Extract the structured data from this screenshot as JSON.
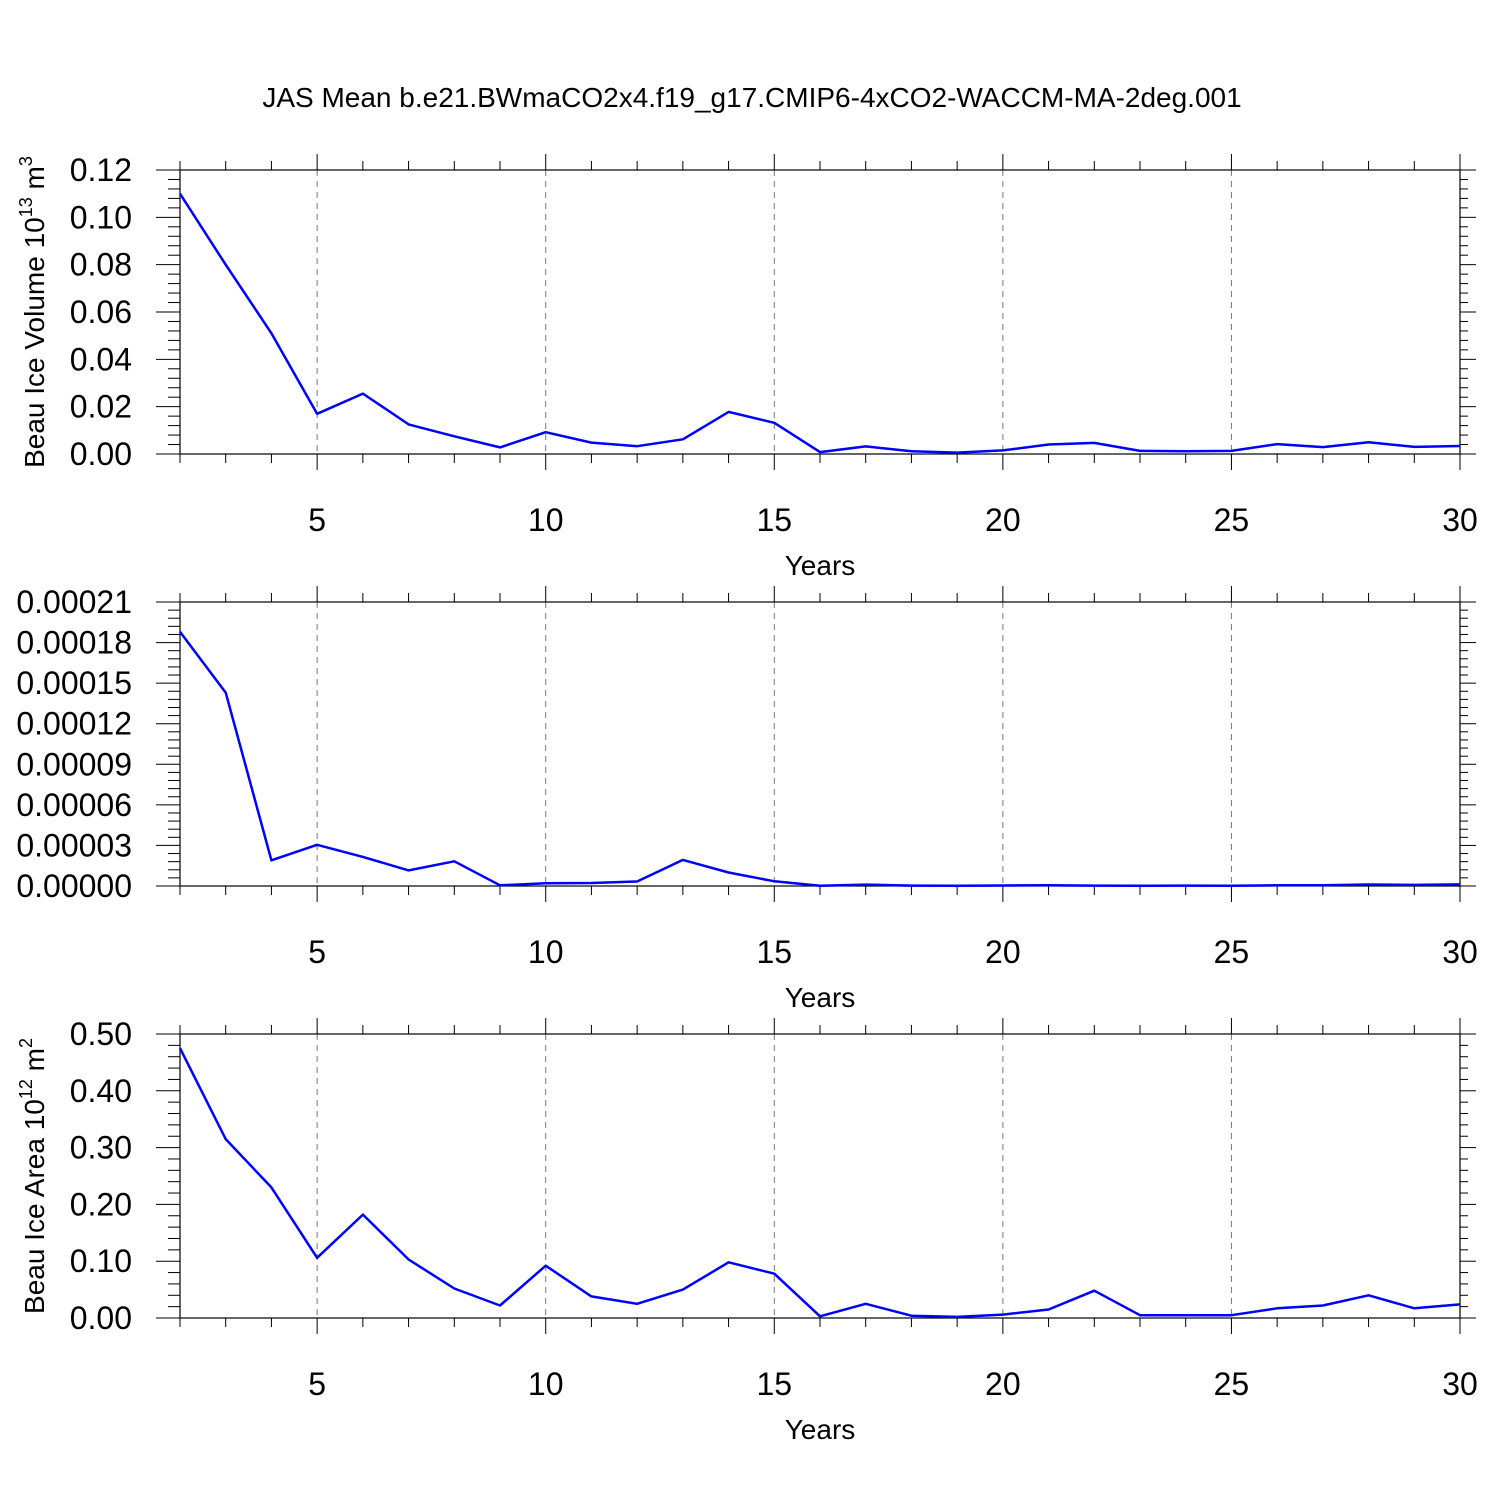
{
  "title": "JAS Mean b.e21.BWmaCO2x4.f19_g17.CMIP6-4xCO2-WACCM-MA-2deg.001",
  "colors": {
    "line": "#0000ff",
    "axis": "#000000",
    "grid": "#777777"
  },
  "chart_data": [
    {
      "type": "line",
      "ylabel": "Beau Ice Volume 10",
      "ylabel_exp": "13",
      "ylabel_unit": " m",
      "ylabel_unit_exp": "3",
      "xlabel": "Years",
      "xlim": [
        2,
        30
      ],
      "ylim": [
        0,
        0.12
      ],
      "x_ticks": [
        5,
        10,
        15,
        20,
        25,
        30
      ],
      "y_ticks": [
        0,
        0.02,
        0.04,
        0.06,
        0.08,
        0.1,
        0.12
      ],
      "y_tick_labels": [
        "0.00",
        "0.02",
        "0.04",
        "0.06",
        "0.08",
        "0.10",
        "0.12"
      ],
      "x": [
        2,
        3,
        4,
        5,
        6,
        7,
        8,
        9,
        10,
        11,
        12,
        13,
        14,
        15,
        16,
        17,
        18,
        19,
        20,
        21,
        22,
        23,
        24,
        25,
        26,
        27,
        28,
        29,
        30
      ],
      "values": [
        0.11,
        0.08,
        0.051,
        0.017,
        0.0255,
        0.0125,
        0.0075,
        0.0028,
        0.0092,
        0.0048,
        0.0033,
        0.0062,
        0.0178,
        0.0132,
        0.0008,
        0.0032,
        0.0012,
        0.0006,
        0.0015,
        0.004,
        0.0047,
        0.0013,
        0.0012,
        0.0013,
        0.0042,
        0.0029,
        0.005,
        0.003,
        0.0034
      ]
    },
    {
      "type": "line",
      "ylabel": "",
      "xlabel": "Years",
      "xlim": [
        2,
        30
      ],
      "ylim": [
        0,
        0.00021
      ],
      "x_ticks": [
        5,
        10,
        15,
        20,
        25,
        30
      ],
      "y_ticks": [
        0,
        3e-05,
        6e-05,
        9e-05,
        0.00012,
        0.00015,
        0.00018,
        0.00021
      ],
      "y_tick_labels": [
        "0.00000",
        "0.00003",
        "0.00006",
        "0.00009",
        "0.00012",
        "0.00015",
        "0.00018",
        "0.00021"
      ],
      "x": [
        2,
        3,
        4,
        5,
        6,
        7,
        8,
        9,
        10,
        11,
        12,
        13,
        14,
        15,
        16,
        17,
        18,
        19,
        20,
        21,
        22,
        23,
        24,
        25,
        26,
        27,
        28,
        29,
        30
      ],
      "values": [
        0.000188,
        0.000143,
        1.9e-05,
        3.05e-05,
        2.15e-05,
        1.15e-05,
        1.83e-05,
        5e-07,
        2e-06,
        2.2e-06,
        3.3e-06,
        1.93e-05,
        1e-05,
        3.5e-06,
        2e-07,
        1e-06,
        3e-07,
        2e-07,
        4e-07,
        6e-07,
        3e-07,
        2e-07,
        3e-07,
        2e-07,
        5e-07,
        6e-07,
        1.1e-06,
        8e-07,
        1.2e-06
      ]
    },
    {
      "type": "line",
      "ylabel": "Beau Ice Area 10",
      "ylabel_exp": "12",
      "ylabel_unit": " m",
      "ylabel_unit_exp": "2",
      "xlabel": "Years",
      "xlim": [
        2,
        30
      ],
      "ylim": [
        0,
        0.5
      ],
      "x_ticks": [
        5,
        10,
        15,
        20,
        25,
        30
      ],
      "y_ticks": [
        0,
        0.1,
        0.2,
        0.3,
        0.4,
        0.5
      ],
      "y_tick_labels": [
        "0.00",
        "0.10",
        "0.20",
        "0.30",
        "0.40",
        "0.50"
      ],
      "x": [
        2,
        3,
        4,
        5,
        6,
        7,
        8,
        9,
        10,
        11,
        12,
        13,
        14,
        15,
        16,
        17,
        18,
        19,
        20,
        21,
        22,
        23,
        24,
        25,
        26,
        27,
        28,
        29,
        30
      ],
      "values": [
        0.475,
        0.315,
        0.23,
        0.106,
        0.182,
        0.103,
        0.052,
        0.022,
        0.092,
        0.038,
        0.025,
        0.05,
        0.098,
        0.078,
        0.003,
        0.025,
        0.004,
        0.002,
        0.006,
        0.015,
        0.048,
        0.005,
        0.005,
        0.005,
        0.017,
        0.022,
        0.04,
        0.017,
        0.024
      ]
    }
  ]
}
